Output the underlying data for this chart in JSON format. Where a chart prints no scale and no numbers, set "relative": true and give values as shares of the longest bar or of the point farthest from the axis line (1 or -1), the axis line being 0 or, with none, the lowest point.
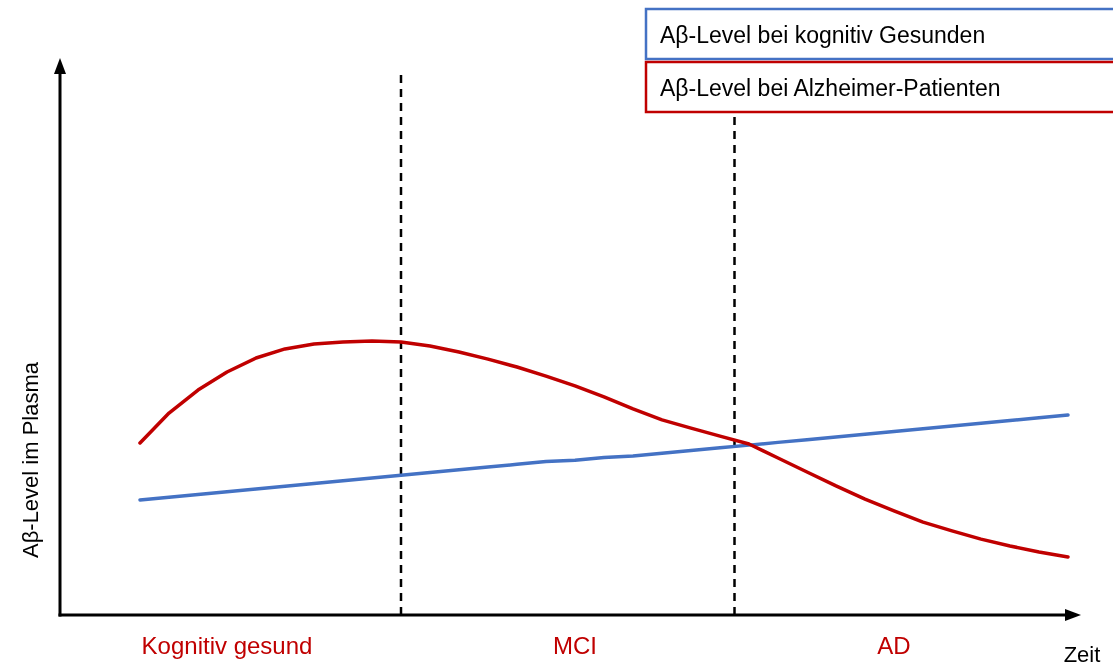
{
  "chart_data": {
    "type": "line",
    "relative": true,
    "xlabel": "Zeit",
    "ylabel": "Aβ-Level im Plasma",
    "tick_labels": "x",
    "legend": "top right",
    "marker": "none",
    "line_style": "solid",
    "categories": [
      null,
      null,
      null,
      "Kognitiv gesund",
      null,
      null,
      null,
      null,
      null,
      null,
      null,
      null,
      null,
      null,
      null,
      "MCI",
      null,
      null,
      null,
      null,
      null,
      null,
      null,
      null,
      null,
      null,
      "AD",
      null,
      null,
      null,
      null,
      null,
      null
    ],
    "series": [
      {
        "name": "Aβ-Level bei kognitiv Gesunden",
        "color": "#4472c4",
        "values": [
          0.42,
          0.43,
          0.44,
          0.45,
          0.46,
          0.47,
          0.48,
          0.49,
          0.5,
          0.51,
          0.52,
          0.53,
          0.54,
          0.55,
          0.56,
          0.565,
          0.575,
          0.58,
          0.59,
          0.6,
          0.61,
          0.62,
          0.63,
          0.64,
          0.65,
          0.66,
          0.67,
          0.68,
          0.69,
          0.7,
          0.71,
          0.72,
          0.73
        ]
      },
      {
        "name": "Aβ-Level bei Alzheimer-Patienten",
        "color": "#c00000",
        "values": [
          0.628,
          0.737,
          0.821,
          0.887,
          0.938,
          0.971,
          0.989,
          0.996,
          1.0,
          0.996,
          0.982,
          0.96,
          0.934,
          0.905,
          0.872,
          0.836,
          0.796,
          0.752,
          0.712,
          0.682,
          0.653,
          0.624,
          0.573,
          0.522,
          0.471,
          0.423,
          0.38,
          0.339,
          0.307,
          0.277,
          0.252,
          0.23,
          0.212
        ]
      }
    ]
  }
}
